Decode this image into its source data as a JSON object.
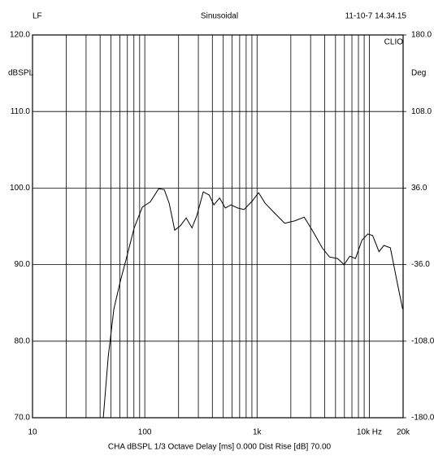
{
  "chart_data": {
    "type": "line",
    "title": "Sinusoidal",
    "channel_label": "LF",
    "timestamp": "11-10-7  14.34.15",
    "brand": "CLIO",
    "y_label": "dBSPL",
    "y2_label": "Deg",
    "footer": "CHA  dBSPL  1/3 Octave  Delay [ms] 0.000  Dist Rise [dB] 70.00",
    "x_scale": "log",
    "xlim": [
      10,
      20000
    ],
    "xticks": [
      {
        "value": 10,
        "label": "10"
      },
      {
        "value": 100,
        "label": "100"
      },
      {
        "value": 1000,
        "label": "1k"
      },
      {
        "value": 10000,
        "label": "10k  Hz"
      },
      {
        "value": 20000,
        "label": "20k"
      }
    ],
    "x_minor_ticks": [
      20,
      30,
      40,
      50,
      60,
      70,
      80,
      90,
      200,
      300,
      400,
      500,
      600,
      700,
      800,
      900,
      2000,
      3000,
      4000,
      5000,
      6000,
      7000,
      8000,
      9000
    ],
    "ylim": [
      70,
      120
    ],
    "yticks": [
      {
        "value": 70,
        "label": "70.0"
      },
      {
        "value": 80,
        "label": "80.0"
      },
      {
        "value": 90,
        "label": "90.0"
      },
      {
        "value": 100,
        "label": "100.0"
      },
      {
        "value": 110,
        "label": "110.0"
      },
      {
        "value": 120,
        "label": "120.0"
      }
    ],
    "y2lim": [
      -180,
      180
    ],
    "y2ticks": [
      {
        "value": -180,
        "label": "-180.0"
      },
      {
        "value": -108,
        "label": "-108.0"
      },
      {
        "value": -36,
        "label": "-36.0"
      },
      {
        "value": 36,
        "label": "36.0"
      },
      {
        "value": 108,
        "label": "108.0"
      },
      {
        "value": 180,
        "label": "180.0"
      }
    ],
    "grid": true,
    "series": [
      {
        "color": "#000000",
        "x": [
          42.7,
          47.2,
          53,
          60.7,
          68,
          80.5,
          95,
          112,
          133,
          149,
          165,
          185,
          208,
          234,
          263,
          291,
          332,
          374,
          413,
          464,
          521,
          586,
          670,
          766,
          905,
          1033,
          1181,
          1418,
          1763,
          2154,
          2630,
          3162,
          3800,
          4420,
          5215,
          5960,
          6700,
          7530,
          8600,
          9680,
          10700,
          12200,
          13500,
          15400,
          17600,
          19800
        ],
        "values": [
          70,
          77.9,
          84.2,
          87.9,
          90.6,
          94.8,
          97.5,
          98.2,
          99.9,
          99.8,
          98.0,
          94.5,
          95.1,
          96.1,
          94.8,
          96.4,
          99.5,
          99.1,
          97.8,
          98.7,
          97.4,
          97.8,
          97.4,
          97.2,
          98.3,
          99.4,
          98.0,
          96.8,
          95.4,
          95.7,
          96.2,
          94.3,
          92.2,
          91.0,
          90.8,
          90.0,
          91.1,
          90.8,
          93.2,
          94.0,
          93.8,
          91.7,
          92.5,
          92.2,
          87.9,
          84.2
        ]
      }
    ]
  }
}
